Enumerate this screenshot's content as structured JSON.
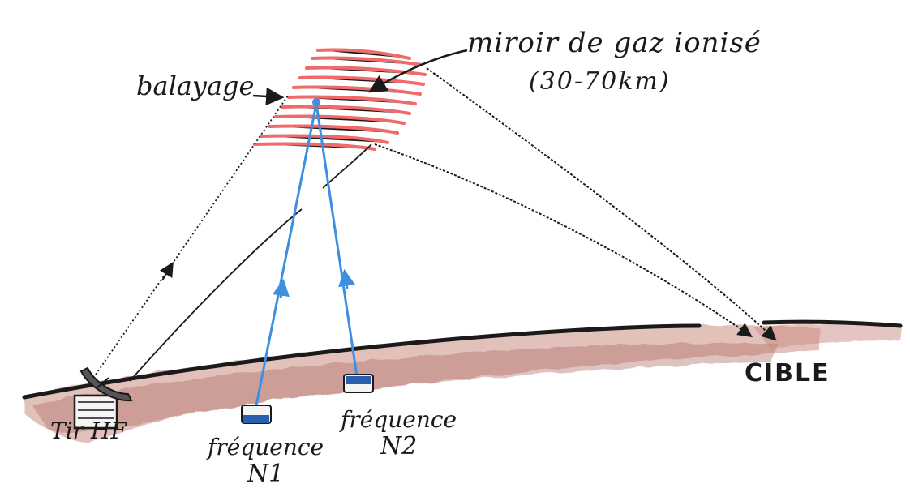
{
  "labels": {
    "mirror": "miroir de gaz ionisé",
    "altitude": "(30-70km)",
    "sweep": "balayage",
    "target": "CIBLE",
    "emitter": "Tir HF",
    "freq1_word": "fréquence",
    "freq1_sub": "N1",
    "freq2_word": "fréquence",
    "freq2_sub": "N2"
  },
  "colors": {
    "ink": "#1a1a1a",
    "blue_beam": "#3f8fe0",
    "ionized_red": "#ef5a5a",
    "ground_brown": "#a8544a",
    "station_blue": "#2a5fb0"
  }
}
